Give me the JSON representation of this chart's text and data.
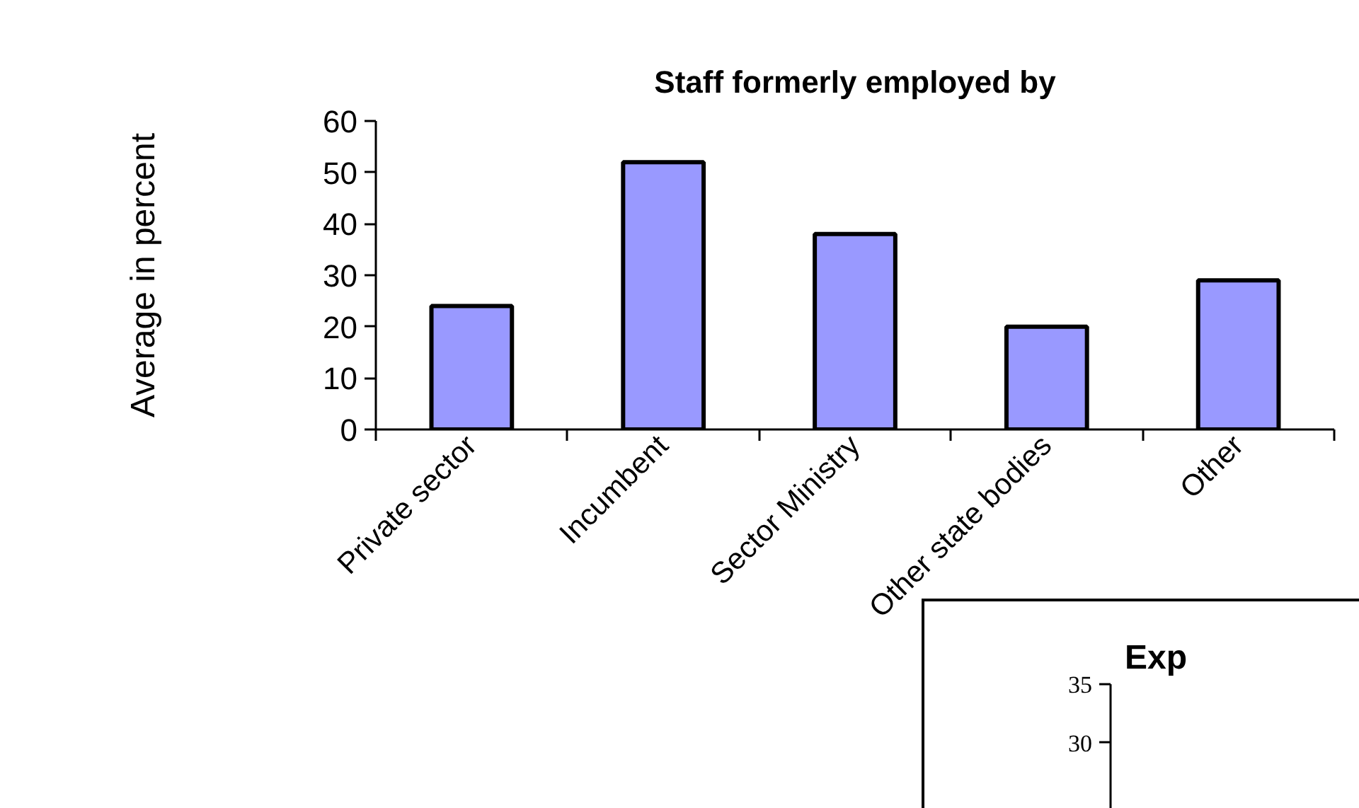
{
  "chart_data": [
    {
      "type": "bar",
      "title": "Staff formerly employed by",
      "ylabel": "Average in percent",
      "categories": [
        "Private sector",
        "Incumbent",
        "Sector Ministry",
        "Other state bodies",
        "Other"
      ],
      "values": [
        24,
        52,
        38,
        20,
        29
      ],
      "color": "#9999ff",
      "ylim": [
        0,
        60
      ],
      "yticks": [
        0,
        10,
        20,
        30,
        40,
        50,
        60
      ],
      "grid": false
    },
    {
      "type": "other",
      "title": "Exp",
      "annotations": [
        "35",
        "30"
      ]
    }
  ]
}
